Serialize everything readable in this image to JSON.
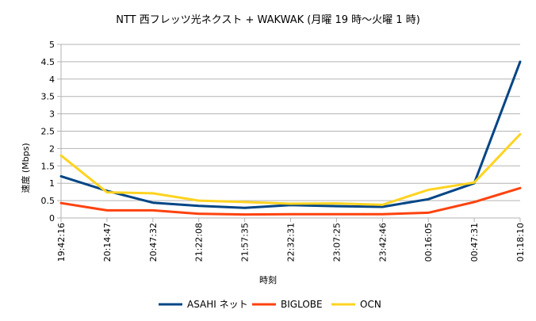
{
  "chart_data": {
    "type": "line",
    "title": "NTT 西フレッツ光ネクスト + WAKWAK (月曜 19 時〜火曜 1 時)",
    "xlabel": "時刻",
    "ylabel": "速度 (Mbps)",
    "ylim": [
      0,
      5
    ],
    "yticks": [
      "0",
      "0.5",
      "1",
      "1.5",
      "2",
      "2.5",
      "3",
      "3.5",
      "4",
      "4.5",
      "5"
    ],
    "categories": [
      "19:42:16",
      "20:14:47",
      "20:47:32",
      "21:22:08",
      "21:57:35",
      "22:32:31",
      "23:07:25",
      "23:42:46",
      "00:16:05",
      "00:47:31",
      "01:18:10"
    ],
    "grid": "horizontal",
    "legend_position": "bottom",
    "series": [
      {
        "name": "ASAHI ネット",
        "color": "#004586",
        "values": [
          1.2,
          0.78,
          0.44,
          0.35,
          0.29,
          0.37,
          0.34,
          0.32,
          0.54,
          1.0,
          4.5
        ]
      },
      {
        "name": "BIGLOBE",
        "color": "#ff420e",
        "values": [
          0.43,
          0.22,
          0.22,
          0.12,
          0.1,
          0.11,
          0.11,
          0.11,
          0.15,
          0.46,
          0.86
        ]
      },
      {
        "name": "OCN",
        "color": "#ffd320",
        "values": [
          1.8,
          0.74,
          0.71,
          0.5,
          0.46,
          0.41,
          0.42,
          0.38,
          0.81,
          1.02,
          2.41
        ]
      }
    ]
  }
}
